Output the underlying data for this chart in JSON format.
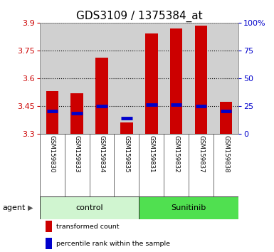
{
  "title": "GDS3109 / 1375384_at",
  "samples": [
    "GSM159830",
    "GSM159833",
    "GSM159834",
    "GSM159835",
    "GSM159831",
    "GSM159832",
    "GSM159837",
    "GSM159838"
  ],
  "red_values": [
    3.53,
    3.52,
    3.71,
    3.36,
    3.84,
    3.87,
    3.885,
    3.47
  ],
  "blue_values": [
    3.42,
    3.41,
    3.45,
    3.385,
    3.455,
    3.455,
    3.45,
    3.42
  ],
  "y_min": 3.3,
  "y_max": 3.9,
  "y_ticks_left": [
    3.3,
    3.45,
    3.6,
    3.75,
    3.9
  ],
  "y_ticks_right_pct": [
    0,
    25,
    50,
    75,
    100
  ],
  "y_right_labels": [
    "0",
    "25",
    "50",
    "75",
    "100%"
  ],
  "groups": [
    {
      "label": "control",
      "indices": [
        0,
        1,
        2,
        3
      ],
      "color": "#d0f5d0"
    },
    {
      "label": "Sunitinib",
      "indices": [
        4,
        5,
        6,
        7
      ],
      "color": "#50e050"
    }
  ],
  "bar_color": "#cc0000",
  "blue_color": "#0000cc",
  "bar_width": 0.5,
  "label_area_color": "#d0d0d0",
  "background_color": "#ffffff",
  "title_fontsize": 11,
  "tick_fontsize": 8,
  "agent_label": "agent",
  "legend_items": [
    {
      "label": "transformed count",
      "color": "#cc0000"
    },
    {
      "label": "percentile rank within the sample",
      "color": "#0000cc"
    }
  ]
}
